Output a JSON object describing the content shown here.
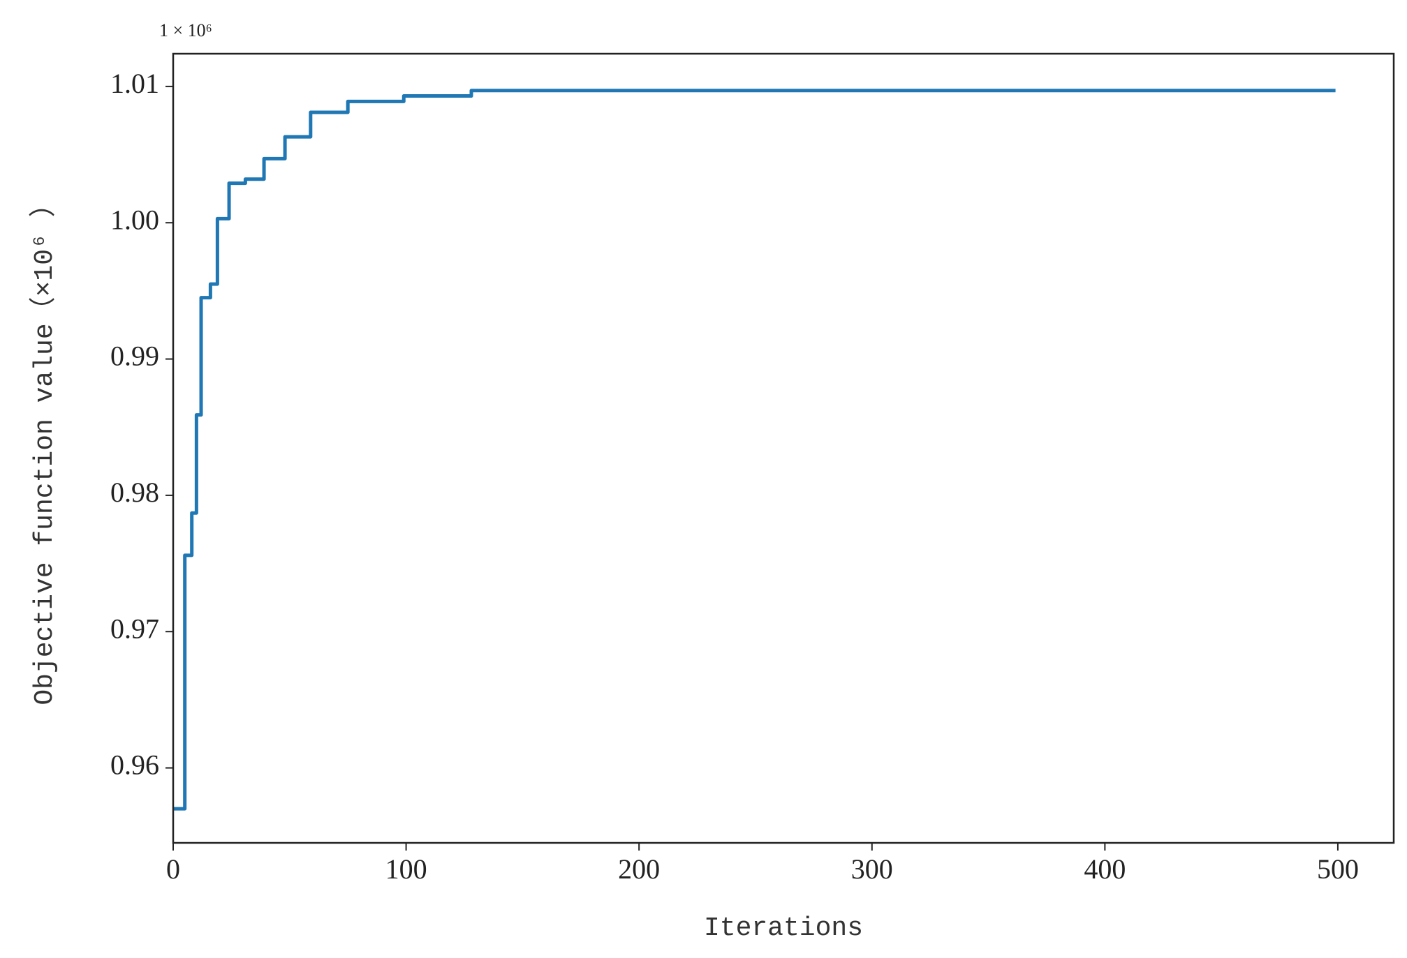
{
  "chart_data": {
    "type": "line",
    "offset_text": "1 × 10⁶",
    "x_label": "Iterations",
    "y_label": "Objective function value（×10⁶ ）",
    "x": [
      0,
      5,
      5,
      8,
      8,
      10,
      10,
      12,
      12,
      16,
      16,
      19,
      19,
      24,
      24,
      31,
      31,
      39,
      39,
      48,
      48,
      59,
      59,
      75,
      75,
      99,
      99,
      128,
      128,
      499
    ],
    "series": [
      {
        "color": "#1f77b4",
        "values": [
          0.957,
          0.957,
          0.9756,
          0.9756,
          0.9787,
          0.9787,
          0.9859,
          0.9859,
          0.9945,
          0.9945,
          0.9955,
          0.9955,
          1.0003,
          1.0003,
          1.0029,
          1.0029,
          1.0032,
          1.0032,
          1.0047,
          1.0047,
          1.0063,
          1.0063,
          1.0081,
          1.0081,
          1.0089,
          1.0089,
          1.0093,
          1.0093,
          1.0097,
          1.0097
        ]
      }
    ],
    "xlim": [
      0,
      524
    ],
    "ylim": [
      0.9545,
      1.0124
    ],
    "xticks": [
      0,
      100,
      200,
      300,
      400,
      500
    ],
    "yticks": [
      0.96,
      0.97,
      0.98,
      0.99,
      {
        "value": 1,
        "label": "1.00"
      },
      1.01
    ]
  }
}
